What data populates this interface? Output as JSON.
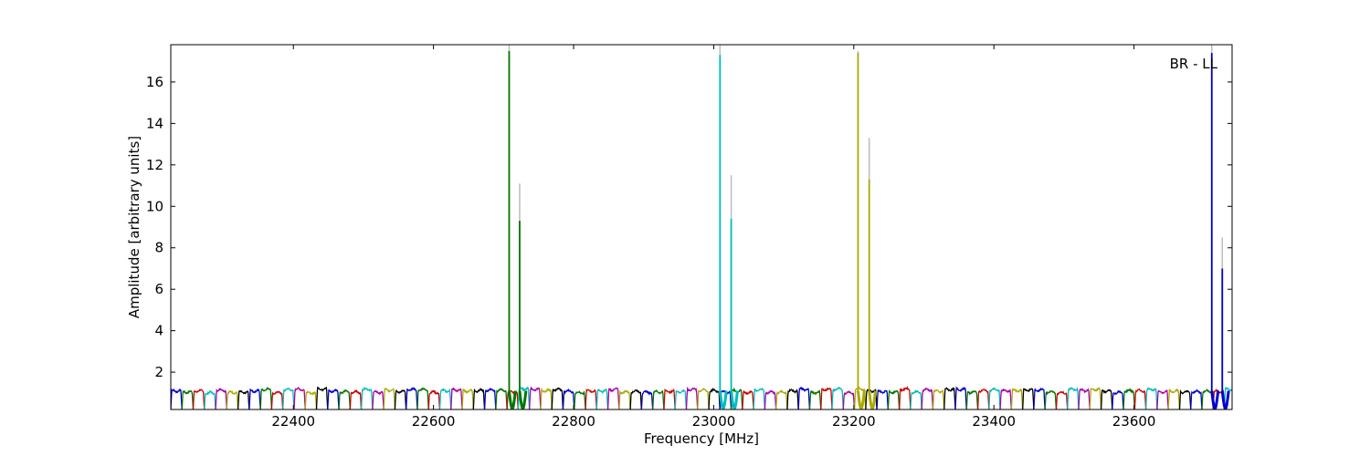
{
  "chart_data": {
    "type": "line",
    "title": "",
    "xlabel": "Frequency [MHz]",
    "ylabel": "Amplitude [arbitrary units]",
    "xlim": [
      22225,
      23740
    ],
    "ylim": [
      0.2,
      17.8
    ],
    "xticks": [
      22400,
      22600,
      22800,
      23000,
      23200,
      23400,
      23600
    ],
    "yticks": [
      2,
      4,
      6,
      8,
      10,
      12,
      14,
      16
    ],
    "grid": false,
    "legend": "none",
    "annotation": "BR - LL",
    "channel_width_mhz": 16,
    "channel_start_mhz": 22225,
    "channel_count": 95,
    "baseline_level": 1.1,
    "color_cycle": [
      "#0000cc",
      "#007700",
      "#cc0000",
      "#00bbbb",
      "#aa00aa",
      "#aaaa00",
      "#000000"
    ],
    "spike_envelope_color": "#bbbbbb",
    "spikes": [
      {
        "x": 22708,
        "value": 17.5,
        "envelope": 17.8,
        "color": "#007700"
      },
      {
        "x": 22723,
        "value": 9.3,
        "envelope": 11.1,
        "color": "#007700"
      },
      {
        "x": 23009,
        "value": 17.3,
        "envelope": 17.8,
        "color": "#00bbbb"
      },
      {
        "x": 23025,
        "value": 9.4,
        "envelope": 11.5,
        "color": "#00bbbb"
      },
      {
        "x": 23206,
        "value": 17.4,
        "envelope": 17.5,
        "color": "#aaaa00"
      },
      {
        "x": 23222,
        "value": 11.3,
        "envelope": 13.3,
        "color": "#aaaa00"
      },
      {
        "x": 23711,
        "value": 17.4,
        "envelope": 17.8,
        "color": "#0000cc"
      },
      {
        "x": 23726,
        "value": 7.0,
        "envelope": 8.5,
        "color": "#0000cc"
      }
    ]
  }
}
